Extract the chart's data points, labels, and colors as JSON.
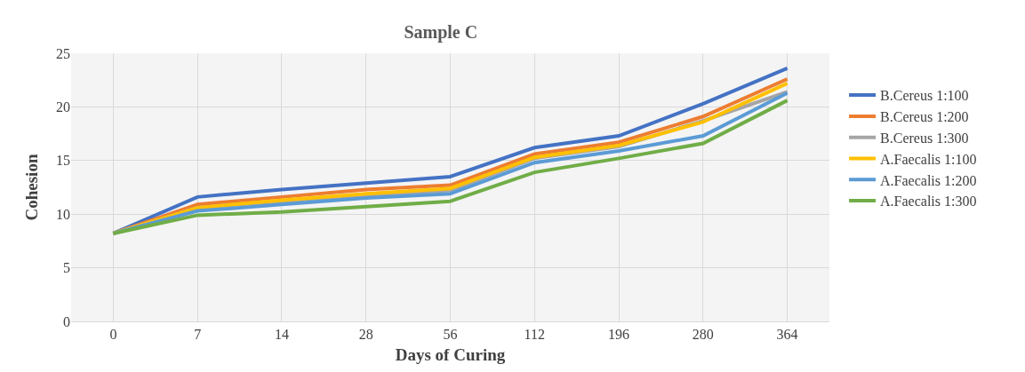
{
  "chart_data": {
    "type": "line",
    "title": "Sample C",
    "xlabel": "Days of Curing",
    "ylabel": "Cohesion",
    "categories": [
      "0",
      "7",
      "14",
      "28",
      "56",
      "112",
      "196",
      "280",
      "364"
    ],
    "series": [
      {
        "name": "B.Cereus 1:100",
        "color": "#4472c4",
        "values": [
          8.2,
          11.6,
          12.3,
          12.9,
          13.5,
          16.2,
          17.3,
          20.3,
          23.6
        ]
      },
      {
        "name": "B.Cereus 1:200",
        "color": "#ed7d31",
        "values": [
          8.2,
          10.9,
          11.6,
          12.3,
          12.7,
          15.6,
          16.7,
          19.1,
          22.6
        ]
      },
      {
        "name": "B.Cereus 1:300",
        "color": "#a5a5a5",
        "values": [
          8.2,
          10.6,
          11.2,
          11.8,
          12.2,
          15.2,
          16.3,
          18.7,
          21.4
        ]
      },
      {
        "name": "A.Faecalis 1:100",
        "color": "#ffc000",
        "values": [
          8.2,
          10.6,
          11.3,
          11.9,
          12.4,
          15.3,
          16.4,
          18.6,
          22.2
        ]
      },
      {
        "name": "A.Faecalis 1:200",
        "color": "#5b9bd5",
        "values": [
          8.2,
          10.3,
          10.9,
          11.5,
          11.9,
          14.8,
          15.9,
          17.3,
          21.3
        ]
      },
      {
        "name": "A.Faecalis 1:300",
        "color": "#70ad47",
        "values": [
          8.2,
          9.9,
          10.2,
          10.7,
          11.2,
          13.9,
          15.2,
          16.6,
          20.6
        ]
      }
    ],
    "ylim": [
      0,
      25
    ],
    "yticks": [
      0,
      5,
      10,
      15,
      20,
      25
    ],
    "grid": true,
    "legend": "right",
    "marker": "none",
    "line_style": "solid"
  }
}
